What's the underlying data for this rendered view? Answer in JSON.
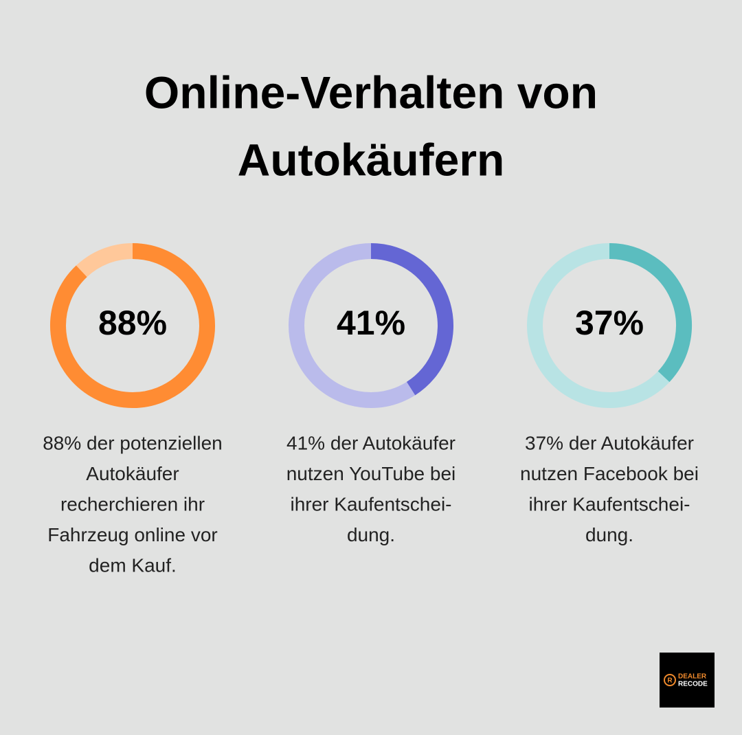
{
  "title": [
    "Online-Verhalten von",
    "Autokäufern"
  ],
  "chart_data": [
    {
      "type": "donut",
      "values": [
        88
      ],
      "value_labels": [
        "88%"
      ],
      "color": "#ff8c33",
      "track_color": "#ffc89a",
      "caption": [
        "88% der potenziellen",
        "Autokäufer",
        "recherchieren ihr",
        "Fahrzeug online vor",
        "dem Kauf."
      ]
    },
    {
      "type": "donut",
      "values": [
        41
      ],
      "value_labels": [
        "41%"
      ],
      "color": "#6466d4",
      "track_color": "#babbeb",
      "caption": [
        "41% der Autokäufer",
        "nutzen YouTube bei",
        "ihrer Kaufentschei-",
        "dung."
      ]
    },
    {
      "type": "donut",
      "values": [
        37
      ],
      "value_labels": [
        "37%"
      ],
      "color": "#5bbdbf",
      "track_color": "#b8e3e4",
      "caption": [
        "37% der Autokäufer",
        "nutzen Facebook bei",
        "ihrer Kaufentschei-",
        "dung."
      ]
    }
  ],
  "logo": [
    "DEALER",
    "RECODE"
  ]
}
